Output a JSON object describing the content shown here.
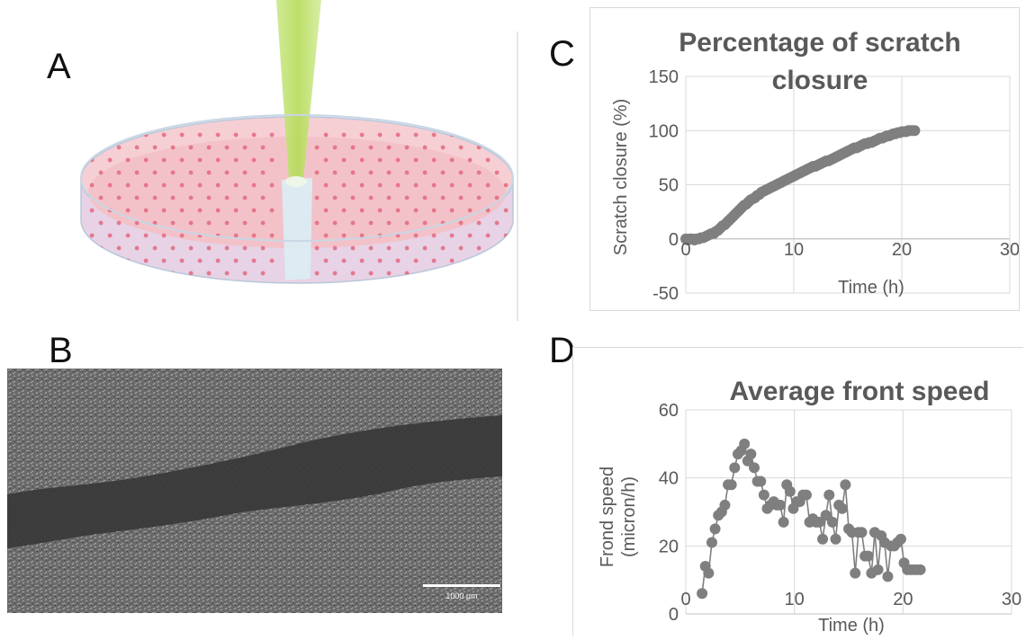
{
  "panels": {
    "a": "A",
    "b": "B",
    "c": "C",
    "d": "D"
  },
  "scale_bar_label": "1000 µm",
  "chart_data": [
    {
      "type": "scatter",
      "title_line1": "Percentage of scratch",
      "title_line2": "closure",
      "xlabel": "Time (h)",
      "ylabel": "Scratch closure (%)",
      "xlim": [
        0,
        30
      ],
      "ylim": [
        -50,
        150
      ],
      "xticks": [
        0,
        10,
        20,
        30
      ],
      "yticks": [
        -50,
        0,
        50,
        100,
        150
      ],
      "grid": true,
      "marker_color": "#7f7f7f",
      "x": [
        0,
        0.2,
        0.4,
        0.6,
        0.8,
        1.0,
        1.2,
        1.4,
        1.6,
        1.8,
        2.0,
        2.2,
        2.4,
        2.6,
        2.8,
        3.0,
        3.2,
        3.4,
        3.6,
        3.8,
        4.0,
        4.2,
        4.4,
        4.6,
        4.8,
        5.0,
        5.2,
        5.4,
        5.6,
        5.8,
        6.0,
        6.2,
        6.4,
        6.6,
        6.8,
        7.0,
        7.2,
        7.4,
        7.6,
        7.8,
        8.0,
        8.2,
        8.4,
        8.6,
        8.8,
        9.0,
        9.2,
        9.4,
        9.6,
        9.8,
        10.0,
        10.2,
        10.4,
        10.6,
        10.8,
        11.0,
        11.2,
        11.4,
        11.6,
        11.8,
        12.0,
        12.2,
        12.4,
        12.6,
        12.8,
        13.0,
        13.2,
        13.4,
        13.6,
        13.8,
        14.0,
        14.2,
        14.4,
        14.6,
        14.8,
        15.0,
        15.2,
        15.4,
        15.6,
        15.8,
        16.0,
        16.2,
        16.4,
        16.6,
        16.8,
        17.0,
        17.2,
        17.4,
        17.6,
        17.8,
        18.0,
        18.2,
        18.4,
        18.6,
        18.8,
        19.0,
        19.2,
        19.4,
        19.6,
        19.8,
        20.0,
        20.2,
        20.4,
        20.6,
        20.8,
        21.0,
        21.2
      ],
      "y": [
        0,
        -1,
        0,
        0,
        -1,
        0,
        0,
        1,
        1,
        2,
        3,
        4,
        5,
        5,
        7,
        8,
        10,
        12,
        13,
        15,
        17,
        19,
        21,
        23,
        25,
        27,
        29,
        31,
        32,
        34,
        36,
        37,
        38,
        40,
        41,
        43,
        44,
        45,
        46,
        47,
        48,
        49,
        50,
        51,
        52,
        53,
        54,
        55,
        56,
        57,
        58,
        59,
        60,
        61,
        62,
        63,
        64,
        65,
        66,
        67,
        67,
        68,
        69,
        70,
        71,
        72,
        72,
        73,
        74,
        75,
        76,
        77,
        78,
        79,
        80,
        81,
        82,
        83,
        84,
        84,
        85,
        86,
        87,
        88,
        88,
        89,
        89,
        90,
        91,
        92,
        93,
        93,
        94,
        95,
        95,
        96,
        97,
        97,
        98,
        98,
        99,
        99,
        99,
        100,
        100,
        100,
        100
      ]
    },
    {
      "type": "line",
      "title": "Average front speed",
      "xlabel": "Time (h)",
      "ylabel_line1": "Frond speed",
      "ylabel_line2": "(micron/h)",
      "xlim": [
        0,
        30
      ],
      "ylim": [
        0,
        60
      ],
      "xticks": [
        0,
        10,
        20,
        30
      ],
      "yticks": [
        0,
        20,
        40,
        60
      ],
      "grid": true,
      "marker_color": "#7f7f7f",
      "x": [
        1.5,
        1.8,
        2.1,
        2.4,
        2.7,
        3.0,
        3.3,
        3.6,
        3.9,
        4.2,
        4.5,
        4.8,
        5.1,
        5.4,
        5.7,
        6.0,
        6.3,
        6.6,
        6.9,
        7.2,
        7.5,
        7.8,
        8.1,
        8.4,
        8.7,
        9.0,
        9.3,
        9.6,
        9.9,
        10.2,
        10.5,
        10.8,
        11.1,
        11.4,
        11.7,
        12.0,
        12.3,
        12.6,
        12.9,
        13.2,
        13.5,
        13.8,
        14.1,
        14.4,
        14.7,
        15.0,
        15.3,
        15.6,
        15.9,
        16.2,
        16.5,
        16.8,
        17.1,
        17.4,
        17.7,
        18.0,
        18.3,
        18.6,
        18.9,
        19.2,
        19.5,
        19.8,
        20.1,
        20.4,
        20.7,
        21.0,
        21.3,
        21.6
      ],
      "y": [
        6,
        14,
        12,
        21,
        25,
        29,
        30,
        32,
        38,
        38,
        43,
        47,
        48,
        50,
        45,
        47,
        43,
        39,
        39,
        35,
        31,
        32,
        33,
        32,
        32,
        27,
        38,
        36,
        31,
        33,
        33,
        35,
        35,
        27,
        28,
        27,
        27,
        22,
        29,
        35,
        27,
        22,
        32,
        31,
        38,
        25,
        24,
        12,
        24,
        24,
        17,
        17,
        12,
        24,
        13,
        23,
        21,
        11,
        20,
        20,
        21,
        22,
        15,
        13,
        13,
        13,
        13,
        13
      ]
    }
  ]
}
